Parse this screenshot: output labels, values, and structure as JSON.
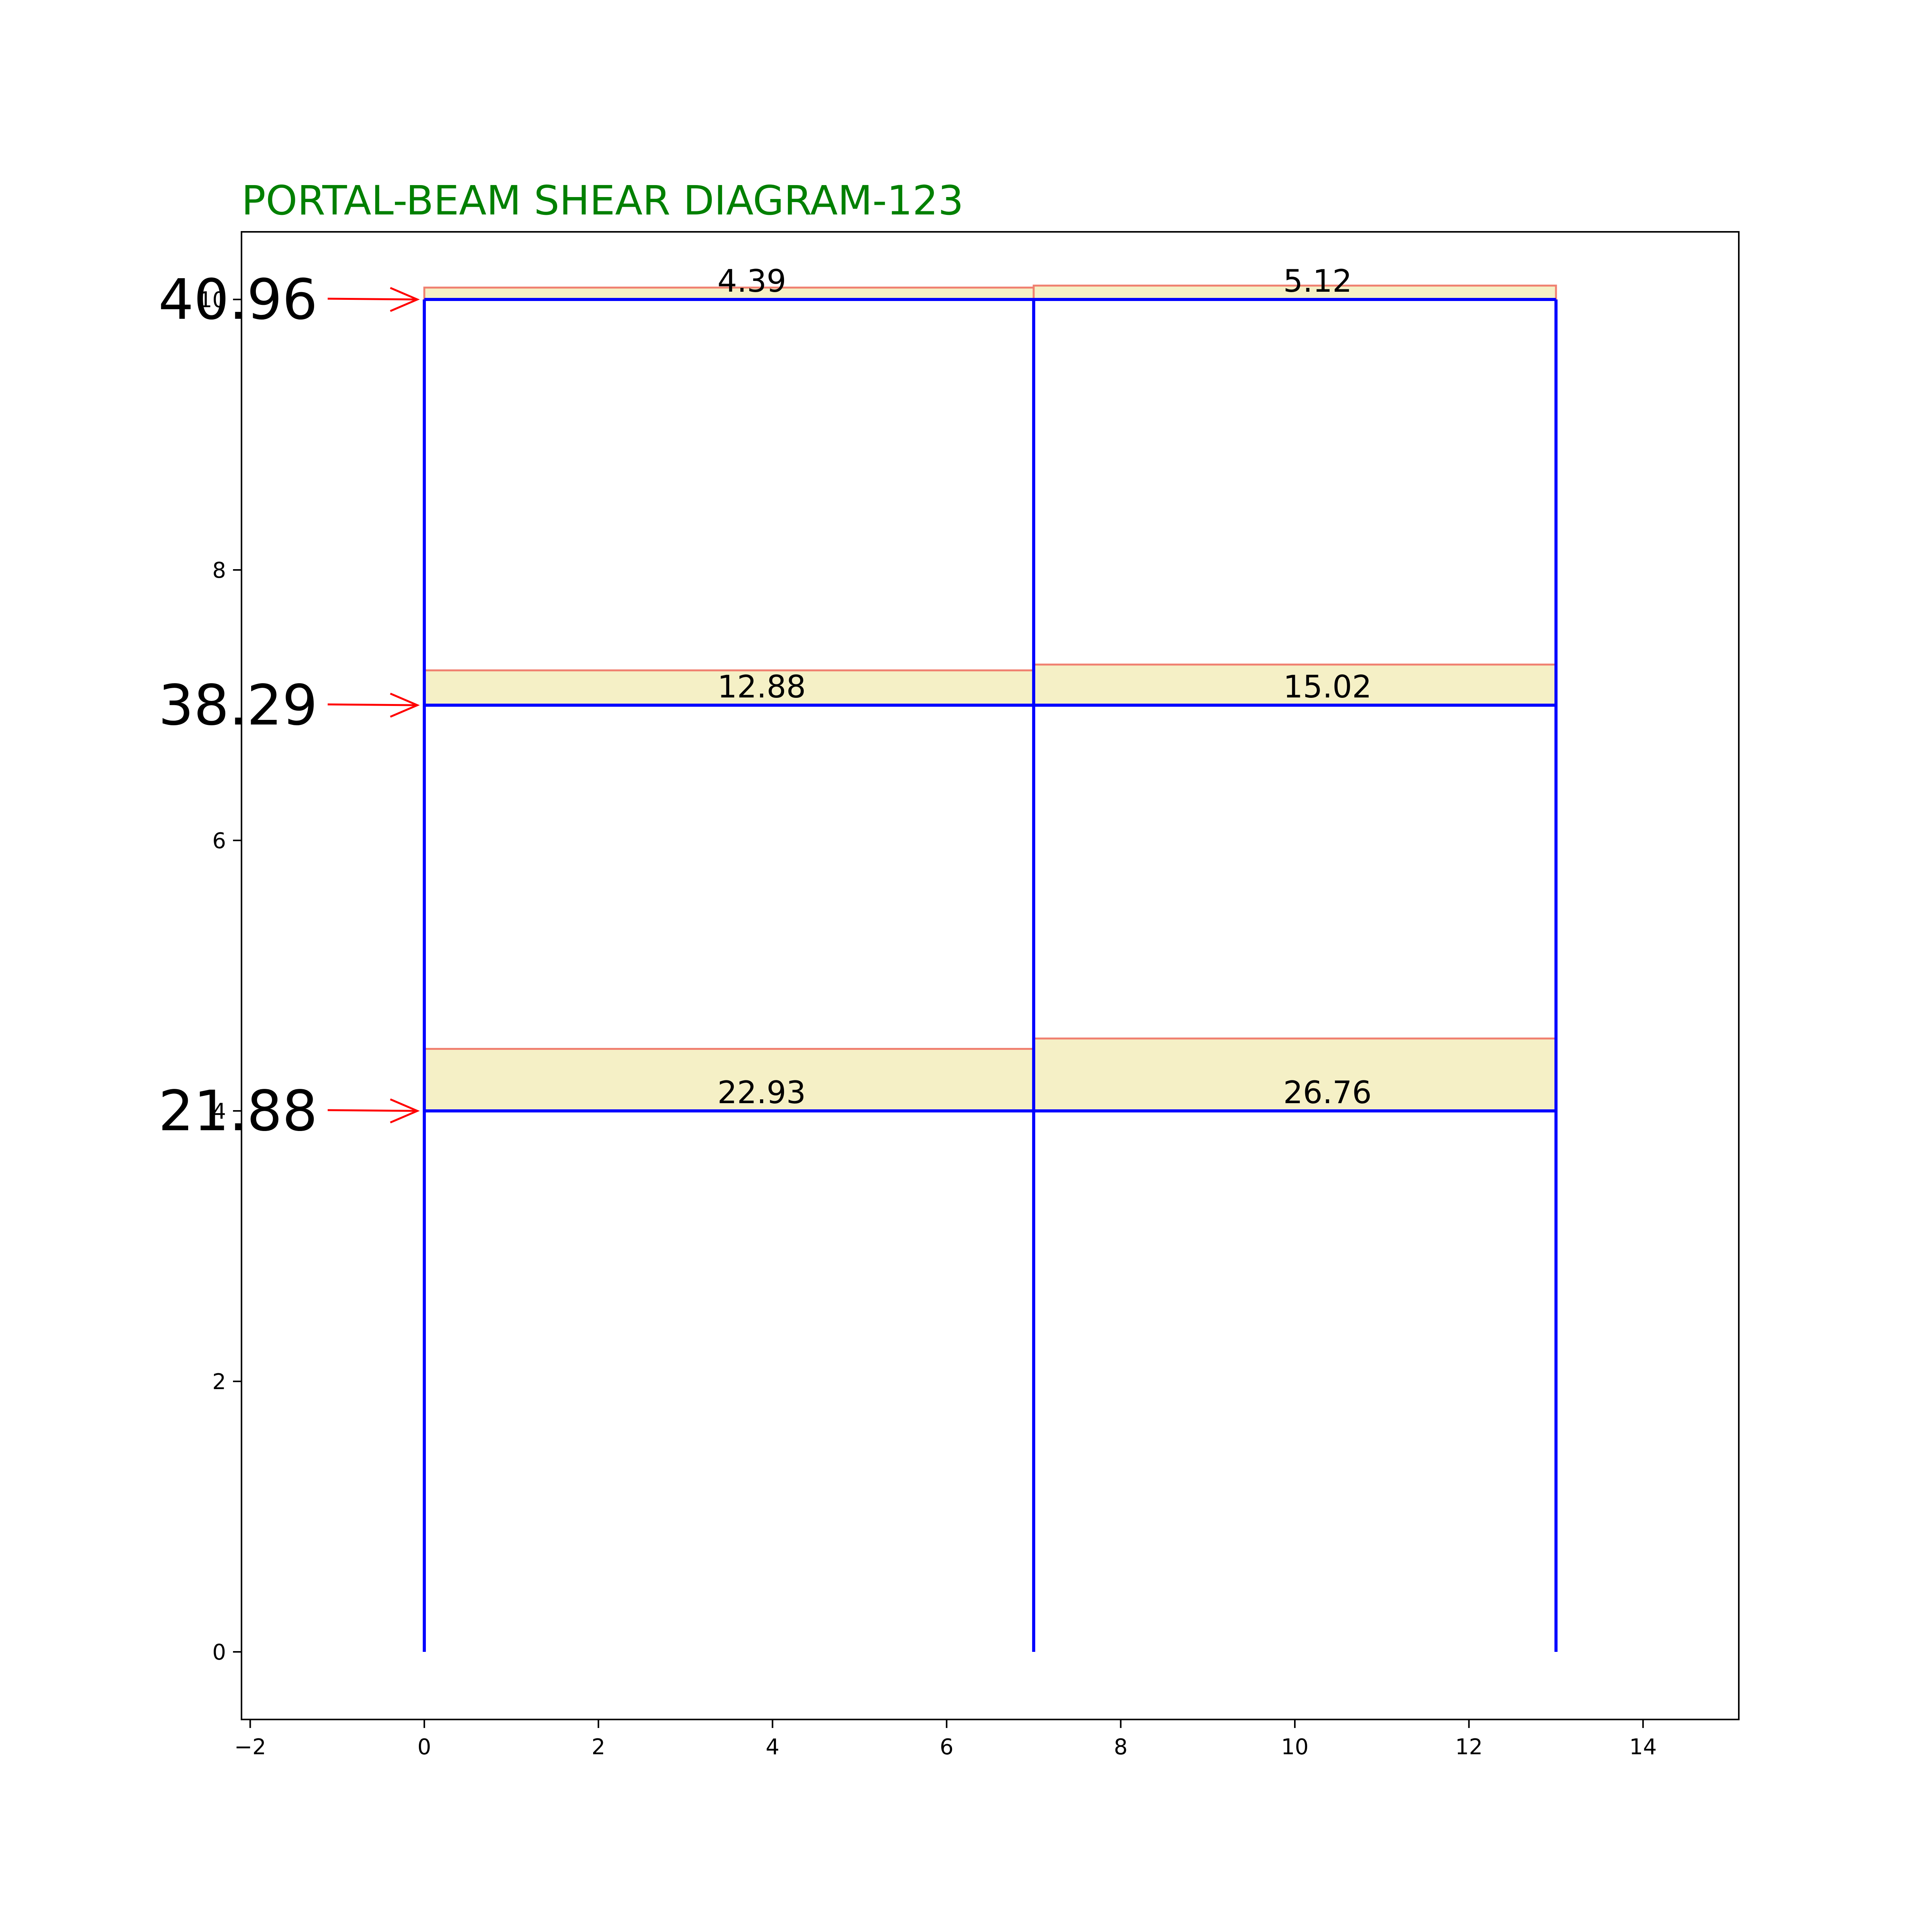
{
  "title": "PORTAL-BEAM SHEAR DIAGRAM-123",
  "colors": {
    "title": "#008000",
    "frame": "#0000ff",
    "shear_fill": "#f5f0c6",
    "shear_edge": "#f08070",
    "load_arrow": "#ff0000",
    "axes": "#000000"
  },
  "axes": {
    "xlim": [
      -2.1,
      15.1
    ],
    "ylim": [
      -0.5,
      10.5
    ],
    "xticks": [
      -2,
      0,
      2,
      4,
      6,
      8,
      10,
      12,
      14
    ],
    "yticks": [
      0,
      2,
      4,
      6,
      8,
      10
    ],
    "xtick_labels": [
      "−2",
      "0",
      "2",
      "4",
      "6",
      "8",
      "10",
      "12",
      "14"
    ],
    "ytick_labels": [
      "0",
      "2",
      "4",
      "6",
      "8",
      "10"
    ]
  },
  "frame": {
    "column_x": [
      0,
      7,
      13
    ],
    "floor_y": [
      4,
      7,
      10
    ],
    "base_y": 0
  },
  "beam_shears": [
    {
      "x0": 0,
      "x1": 7,
      "level": 4,
      "value": 22.93,
      "label": "22.93"
    },
    {
      "x0": 7,
      "x1": 13,
      "level": 4,
      "value": 26.76,
      "label": "26.76"
    },
    {
      "x0": 0,
      "x1": 7,
      "level": 7,
      "value": 12.88,
      "label": "12.88"
    },
    {
      "x0": 7,
      "x1": 13,
      "level": 7,
      "value": 15.02,
      "label": "15.02"
    },
    {
      "x0": 0,
      "x1": 7,
      "level": 10,
      "value": 4.39,
      "label": "4.39"
    },
    {
      "x0": 7,
      "x1": 13,
      "level": 10,
      "value": 5.12,
      "label": "5.12"
    }
  ],
  "lateral_loads": [
    {
      "level": 10,
      "value": 40.96,
      "label": "40.96"
    },
    {
      "level": 7,
      "value": 38.29,
      "label": "38.29"
    },
    {
      "level": 4,
      "value": 21.88,
      "label": "21.88"
    }
  ]
}
